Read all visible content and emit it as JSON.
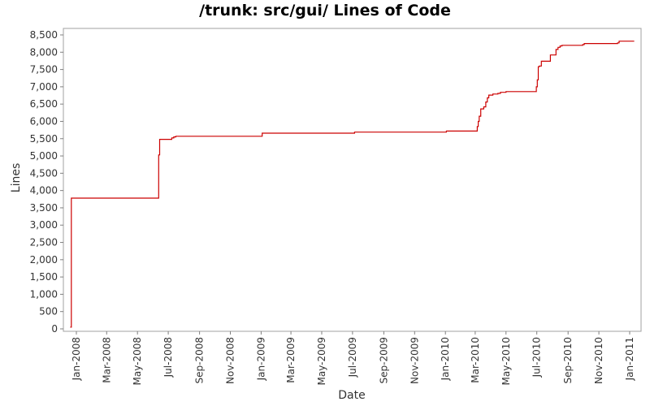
{
  "chart_data": {
    "type": "line",
    "title": "/trunk: src/gui/ Lines of Code",
    "xlabel": "Date",
    "ylabel": "Lines",
    "ylim": [
      0,
      8700
    ],
    "xlim": [
      "2007-12-10",
      "2011-01-18"
    ],
    "y_ticks": [
      0,
      500,
      1000,
      1500,
      2000,
      2500,
      3000,
      3500,
      4000,
      4500,
      5000,
      5500,
      6000,
      6500,
      7000,
      7500,
      8000,
      8500
    ],
    "y_tick_labels": [
      "0",
      "500",
      "1,000",
      "1,500",
      "2,000",
      "2,500",
      "3,000",
      "3,500",
      "4,000",
      "4,500",
      "5,000",
      "5,500",
      "6,000",
      "6,500",
      "7,000",
      "7,500",
      "8,000",
      "8,500"
    ],
    "x_ticks": [
      "2008-01-01",
      "2008-03-01",
      "2008-05-01",
      "2008-07-01",
      "2008-09-01",
      "2008-11-01",
      "2009-01-01",
      "2009-03-01",
      "2009-05-01",
      "2009-07-01",
      "2009-09-01",
      "2009-11-01",
      "2010-01-01",
      "2010-03-01",
      "2010-05-01",
      "2010-07-01",
      "2010-09-01",
      "2010-11-01",
      "2011-01-01"
    ],
    "x_tick_labels": [
      "Jan-2008",
      "Mar-2008",
      "May-2008",
      "Jul-2008",
      "Sep-2008",
      "Nov-2008",
      "Jan-2009",
      "Mar-2009",
      "May-2009",
      "Jul-2009",
      "Sep-2009",
      "Nov-2009",
      "Jan-2010",
      "Mar-2010",
      "May-2010",
      "Jul-2010",
      "Sep-2010",
      "Nov-2010",
      "Jan-2011"
    ],
    "grid": false,
    "series": [
      {
        "color": "#cc0000",
        "step": true,
        "x": [
          "2007-12-20",
          "2007-12-22",
          "2008-06-12",
          "2008-06-14",
          "2008-07-08",
          "2008-07-12",
          "2008-07-16",
          "2009-01-03",
          "2009-07-05",
          "2010-01-03",
          "2010-03-05",
          "2010-03-07",
          "2010-03-09",
          "2010-03-12",
          "2010-03-18",
          "2010-03-22",
          "2010-03-25",
          "2010-03-28",
          "2010-04-05",
          "2010-04-15",
          "2010-04-20",
          "2010-05-01",
          "2010-06-30",
          "2010-07-02",
          "2010-07-04",
          "2010-07-06",
          "2010-07-10",
          "2010-07-28",
          "2010-08-08",
          "2010-08-12",
          "2010-08-16",
          "2010-08-20",
          "2010-09-30",
          "2010-10-03",
          "2010-12-08",
          "2010-12-11",
          "2011-01-10"
        ],
        "y": [
          50,
          3780,
          5030,
          5480,
          5520,
          5550,
          5570,
          5660,
          5690,
          5720,
          5850,
          6000,
          6150,
          6360,
          6420,
          6560,
          6680,
          6760,
          6790,
          6810,
          6840,
          6860,
          7000,
          7200,
          7580,
          7600,
          7740,
          7920,
          8080,
          8140,
          8180,
          8200,
          8220,
          8250,
          8270,
          8320,
          8320
        ]
      }
    ]
  }
}
